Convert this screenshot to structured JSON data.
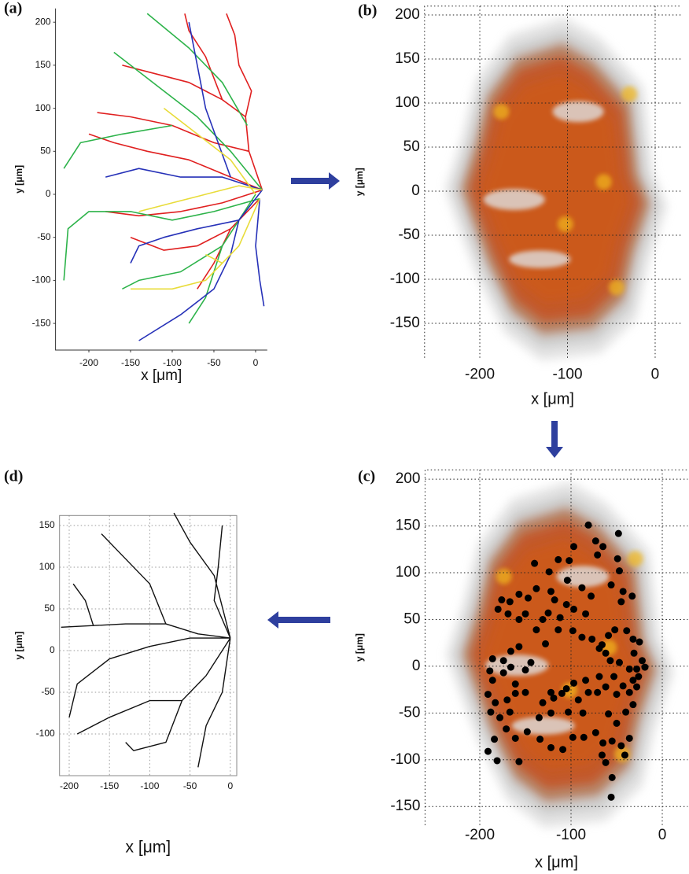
{
  "chart_data": [
    {
      "type": "line",
      "panel": "(a)",
      "xlabel": "x [μm]",
      "ylabel": "y [μm]",
      "xlim": [
        -240,
        14
      ],
      "ylim": [
        -181,
        216
      ],
      "xticks": [
        -200,
        -150,
        -100,
        -50,
        0
      ],
      "yticks": [
        -150,
        -100,
        -50,
        0,
        50,
        100,
        150,
        200
      ],
      "grid": false,
      "series": [
        {
          "color": "#e02020",
          "x": [
            8,
            -8,
            -12,
            -5,
            -20,
            -25,
            -35,
            null,
            -12,
            -40,
            -80,
            -120,
            -160,
            null,
            8,
            -30,
            -80,
            -130,
            -170,
            -200,
            null,
            8,
            -40,
            -90,
            -140,
            -180,
            null,
            5,
            -30,
            -70,
            -110,
            -150,
            null,
            -8,
            -50,
            -100,
            -150,
            -190,
            null,
            -40,
            -60,
            -80,
            -85,
            null,
            -30,
            -50,
            -70
          ],
          "y": [
            5,
            50,
            90,
            120,
            150,
            185,
            210,
            null,
            90,
            110,
            130,
            140,
            150,
            null,
            5,
            20,
            40,
            50,
            60,
            70,
            null,
            5,
            -10,
            -20,
            -25,
            -20,
            null,
            -5,
            -40,
            -60,
            -65,
            -50,
            null,
            50,
            60,
            80,
            90,
            95,
            null,
            110,
            160,
            190,
            210,
            null,
            -40,
            -80,
            -110
          ]
        },
        {
          "color": "#2db34a",
          "x": [
            8,
            -30,
            -70,
            -110,
            -150,
            -170,
            null,
            5,
            -50,
            -100,
            -150,
            -200,
            -225,
            -230,
            null,
            -10,
            -40,
            -80,
            -130,
            null,
            0,
            -40,
            -90,
            -140,
            -160,
            null,
            -40,
            -60,
            -80,
            null,
            -100,
            -160,
            -210,
            -230
          ],
          "y": [
            5,
            50,
            90,
            120,
            150,
            165,
            null,
            -5,
            -20,
            -30,
            -20,
            -20,
            -40,
            -100,
            null,
            80,
            130,
            170,
            210,
            null,
            0,
            -60,
            -90,
            -100,
            -110,
            null,
            -60,
            -120,
            -150,
            null,
            80,
            70,
            60,
            30
          ]
        },
        {
          "color": "#2631b8",
          "x": [
            8,
            -20,
            -30,
            -50,
            -90,
            -140,
            null,
            5,
            0,
            5,
            10,
            null,
            8,
            -40,
            -90,
            -140,
            -180,
            null,
            -20,
            -70,
            -110,
            -140,
            -150,
            null,
            -30,
            -60,
            -70,
            -80
          ],
          "y": [
            5,
            -30,
            -70,
            -110,
            -140,
            -170,
            null,
            -5,
            -60,
            -100,
            -130,
            null,
            5,
            20,
            20,
            30,
            20,
            null,
            -30,
            -40,
            -50,
            -60,
            -80,
            null,
            20,
            100,
            150,
            200
          ]
        },
        {
          "color": "#e8dc3a",
          "x": [
            8,
            -20,
            -60,
            -100,
            -140,
            null,
            5,
            -20,
            -60,
            -100,
            -150,
            null,
            0,
            -30,
            -70,
            -110,
            null,
            -20,
            -40,
            -60
          ],
          "y": [
            5,
            10,
            0,
            -10,
            -20,
            null,
            -5,
            -60,
            -100,
            -110,
            -110,
            null,
            0,
            40,
            70,
            100,
            null,
            -60,
            -80,
            -70
          ]
        }
      ]
    },
    {
      "type": "heatmap",
      "panel": "(b)",
      "xlabel": "x [μm]",
      "ylabel": "y [μm]",
      "xlim": [
        -263,
        29
      ],
      "ylim": [
        -189,
        210
      ],
      "xticks": [
        -200,
        -100,
        0
      ],
      "yticks": [
        -150,
        -100,
        -50,
        0,
        50,
        100,
        150,
        200
      ],
      "grid": true
    },
    {
      "type": "scatter",
      "panel": "(c)",
      "xlabel": "x [μm]",
      "ylabel": "y [μm]",
      "heatmap": true,
      "color": "#000000",
      "xlim": [
        -260,
        28
      ],
      "ylim": [
        -170,
        210
      ],
      "xticks": [
        -200,
        -100,
        0
      ],
      "yticks": [
        -150,
        -100,
        -50,
        0,
        50,
        100,
        150,
        200
      ],
      "grid": true,
      "x": [
        -81,
        -73,
        -65,
        -71,
        -48,
        -97,
        -102,
        -114,
        -140,
        -124,
        -104,
        -88,
        -78,
        -49,
        -47,
        -56,
        -43,
        -33,
        -45,
        -138,
        -122,
        -118,
        -105,
        -97,
        -84,
        -112,
        -125,
        -131,
        -150,
        -157,
        -169,
        -180,
        -176,
        -167,
        -157,
        -147,
        -138,
        -128,
        -114,
        -98,
        -88,
        -77,
        -66,
        -59,
        -52,
        -39,
        -32,
        -25,
        -31,
        -22,
        -28,
        -36,
        -47,
        -57,
        -62,
        -69,
        -53,
        -43,
        -32,
        -19,
        -26,
        -36,
        -50,
        -62,
        -69,
        -84,
        -97,
        -105,
        -92,
        -81,
        -71,
        -110,
        -122,
        -119,
        -131,
        -150,
        -161,
        -174,
        -186,
        -174,
        -166,
        -157,
        -144,
        -150,
        -170,
        -183,
        -191,
        -188,
        -178,
        -167,
        -161,
        -171,
        -161,
        -148,
        -135,
        -122,
        -103,
        -87,
        -134,
        -122,
        -109,
        -98,
        -86,
        -73,
        -65,
        -55,
        -45,
        -36,
        -50,
        -59,
        -40,
        -32,
        -28,
        -66,
        -62,
        -55,
        -56,
        -41,
        -191,
        -184,
        -181,
        -157,
        -186,
        -166,
        -189
      ],
      "y": [
        151,
        134,
        128,
        119,
        142,
        128,
        113,
        114,
        110,
        101,
        92,
        84,
        75,
        115,
        102,
        87,
        80,
        75,
        69,
        83,
        80,
        71,
        66,
        61,
        56,
        52,
        57,
        50,
        56,
        50,
        56,
        61,
        71,
        69,
        77,
        73,
        39,
        24,
        39,
        38,
        31,
        29,
        23,
        33,
        39,
        38,
        29,
        26,
        14,
        6,
        -3,
        -3,
        4,
        6,
        14,
        19,
        -11,
        -21,
        -15,
        -1,
        -11,
        -28,
        -30,
        -22,
        -11,
        -15,
        -18,
        -24,
        -36,
        -28,
        -28,
        -29,
        -28,
        -34,
        -39,
        -28,
        -19,
        -7,
        8,
        6,
        16,
        21,
        4,
        -4,
        -36,
        -39,
        -30,
        -49,
        -55,
        -49,
        -29,
        -67,
        -77,
        -70,
        -55,
        -50,
        -49,
        -50,
        -78,
        -87,
        -89,
        -76,
        -76,
        -71,
        -82,
        -80,
        -85,
        -77,
        -61,
        -51,
        -49,
        -41,
        -22,
        -95,
        -103,
        -119,
        -140,
        -95,
        -91,
        -78,
        -101,
        -102,
        -15,
        -1,
        -5
      ]
    },
    {
      "type": "line",
      "panel": "(d)",
      "xlabel": "x [μm]",
      "ylabel": "y [μm]",
      "xlim": [
        -212,
        8
      ],
      "ylim": [
        -150,
        162
      ],
      "xticks": [
        -200,
        -150,
        -100,
        -50,
        0
      ],
      "yticks": [
        -100,
        -50,
        0,
        50,
        100,
        150
      ],
      "grid": true,
      "series": [
        {
          "color": "#111111",
          "x": [
            0,
            -50,
            -100,
            -150,
            -190,
            -200,
            null,
            0,
            -40,
            -80,
            -130,
            -170,
            -210,
            null,
            0,
            -20,
            -15,
            -10,
            null,
            0,
            -30,
            -60,
            -100,
            -150,
            -190,
            null,
            0,
            -10,
            -30,
            -40,
            null,
            -80,
            -100,
            -140,
            -160,
            null,
            0,
            -20,
            -50,
            -70,
            null,
            -170,
            -180,
            -195,
            null,
            -60,
            -80,
            -120,
            -130
          ],
          "y": [
            15,
            15,
            5,
            -10,
            -40,
            -80,
            null,
            15,
            20,
            32,
            32,
            30,
            28,
            null,
            15,
            60,
            100,
            150,
            null,
            15,
            -30,
            -60,
            -60,
            -80,
            -100,
            null,
            15,
            -50,
            -90,
            -140,
            null,
            32,
            80,
            120,
            140,
            null,
            15,
            90,
            130,
            165,
            null,
            30,
            60,
            80,
            null,
            -60,
            -110,
            -120,
            -110
          ]
        }
      ]
    }
  ]
}
